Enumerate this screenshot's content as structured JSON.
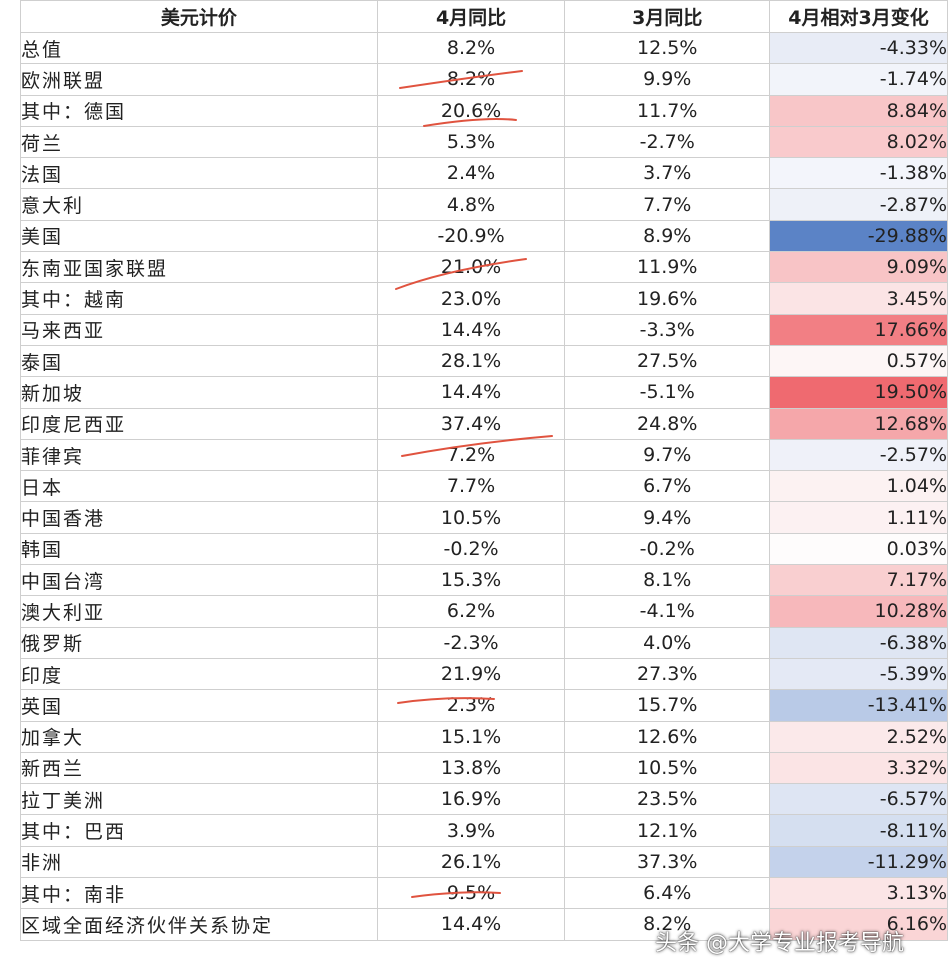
{
  "header": {
    "col_region": "美元计价",
    "col_apr": "4月同比",
    "col_mar": "3月同比",
    "col_change": "4月相对3月变化"
  },
  "rows": [
    {
      "name": "总值",
      "apr": "8.2%",
      "mar": "12.5%",
      "change": "-4.33%",
      "bg": "#e8ecf6",
      "sub": false
    },
    {
      "name": "欧洲联盟",
      "apr": "8.2%",
      "mar": "9.9%",
      "change": "-1.74%",
      "bg": "#f2f4fa",
      "sub": false
    },
    {
      "name": "其中：德国",
      "apr": "20.6%",
      "mar": "11.7%",
      "change": "8.84%",
      "bg": "#f8c6c8",
      "sub": false
    },
    {
      "name": "荷兰",
      "apr": "5.3%",
      "mar": "-2.7%",
      "change": "8.02%",
      "bg": "#f9cacc",
      "sub": true
    },
    {
      "name": "法国",
      "apr": "2.4%",
      "mar": "3.7%",
      "change": "-1.38%",
      "bg": "#f3f5fb",
      "sub": true
    },
    {
      "name": "意大利",
      "apr": "4.8%",
      "mar": "7.7%",
      "change": "-2.87%",
      "bg": "#eef1f8",
      "sub": true
    },
    {
      "name": "美国",
      "apr": "-20.9%",
      "mar": "8.9%",
      "change": "-29.88%",
      "bg": "#5b83c6",
      "sub": false
    },
    {
      "name": "东南亚国家联盟",
      "apr": "21.0%",
      "mar": "11.9%",
      "change": "9.09%",
      "bg": "#f8c4c6",
      "sub": false
    },
    {
      "name": "其中：越南",
      "apr": "23.0%",
      "mar": "19.6%",
      "change": "3.45%",
      "bg": "#fbe4e5",
      "sub": false
    },
    {
      "name": "马来西亚",
      "apr": "14.4%",
      "mar": "-3.3%",
      "change": "17.66%",
      "bg": "#f27f84",
      "sub": true
    },
    {
      "name": "泰国",
      "apr": "28.1%",
      "mar": "27.5%",
      "change": "0.57%",
      "bg": "#fdf6f6",
      "sub": true
    },
    {
      "name": "新加坡",
      "apr": "14.4%",
      "mar": "-5.1%",
      "change": "19.50%",
      "bg": "#ef6a70",
      "sub": true
    },
    {
      "name": "印度尼西亚",
      "apr": "37.4%",
      "mar": "24.8%",
      "change": "12.68%",
      "bg": "#f5a7aa",
      "sub": true
    },
    {
      "name": "菲律宾",
      "apr": "7.2%",
      "mar": "9.7%",
      "change": "-2.57%",
      "bg": "#eff1f9",
      "sub": true
    },
    {
      "name": "日本",
      "apr": "7.7%",
      "mar": "6.7%",
      "change": "1.04%",
      "bg": "#fcf2f2",
      "sub": false
    },
    {
      "name": "中国香港",
      "apr": "10.5%",
      "mar": "9.4%",
      "change": "1.11%",
      "bg": "#fcf1f2",
      "sub": false
    },
    {
      "name": "韩国",
      "apr": "-0.2%",
      "mar": "-0.2%",
      "change": "0.03%",
      "bg": "#fefcfc",
      "sub": false
    },
    {
      "name": "中国台湾",
      "apr": "15.3%",
      "mar": "8.1%",
      "change": "7.17%",
      "bg": "#f9cfd0",
      "sub": false
    },
    {
      "name": "澳大利亚",
      "apr": "6.2%",
      "mar": "-4.1%",
      "change": "10.28%",
      "bg": "#f7b8bb",
      "sub": false
    },
    {
      "name": "俄罗斯",
      "apr": "-2.3%",
      "mar": "4.0%",
      "change": "-6.38%",
      "bg": "#dfe6f3",
      "sub": false
    },
    {
      "name": "印度",
      "apr": "21.9%",
      "mar": "27.3%",
      "change": "-5.39%",
      "bg": "#e4e9f5",
      "sub": false
    },
    {
      "name": "英国",
      "apr": "2.3%",
      "mar": "15.7%",
      "change": "-13.41%",
      "bg": "#b9cae7",
      "sub": false
    },
    {
      "name": "加拿大",
      "apr": "15.1%",
      "mar": "12.6%",
      "change": "2.52%",
      "bg": "#fbe9ea",
      "sub": false
    },
    {
      "name": "新西兰",
      "apr": "13.8%",
      "mar": "10.5%",
      "change": "3.32%",
      "bg": "#fbe4e5",
      "sub": false
    },
    {
      "name": "拉丁美洲",
      "apr": "16.9%",
      "mar": "23.5%",
      "change": "-6.57%",
      "bg": "#dee5f3",
      "sub": false
    },
    {
      "name": "其中：巴西",
      "apr": "3.9%",
      "mar": "12.1%",
      "change": "-8.11%",
      "bg": "#d5dff0",
      "sub": false
    },
    {
      "name": "非洲",
      "apr": "26.1%",
      "mar": "37.3%",
      "change": "-11.29%",
      "bg": "#c4d2eb",
      "sub": false
    },
    {
      "name": "其中：南非",
      "apr": "9.5%",
      "mar": "6.4%",
      "change": "3.13%",
      "bg": "#fbe5e6",
      "sub": false
    },
    {
      "name": "区域全面经济伙伴关系协定",
      "apr": "14.4%",
      "mar": "8.2%",
      "change": "6.16%",
      "bg": "#fad5d6",
      "sub": false
    }
  ],
  "watermark": "头条 @大学专业报考导航",
  "colors": {
    "grid": "#cfcfcf",
    "annotation": "#e0533f"
  }
}
